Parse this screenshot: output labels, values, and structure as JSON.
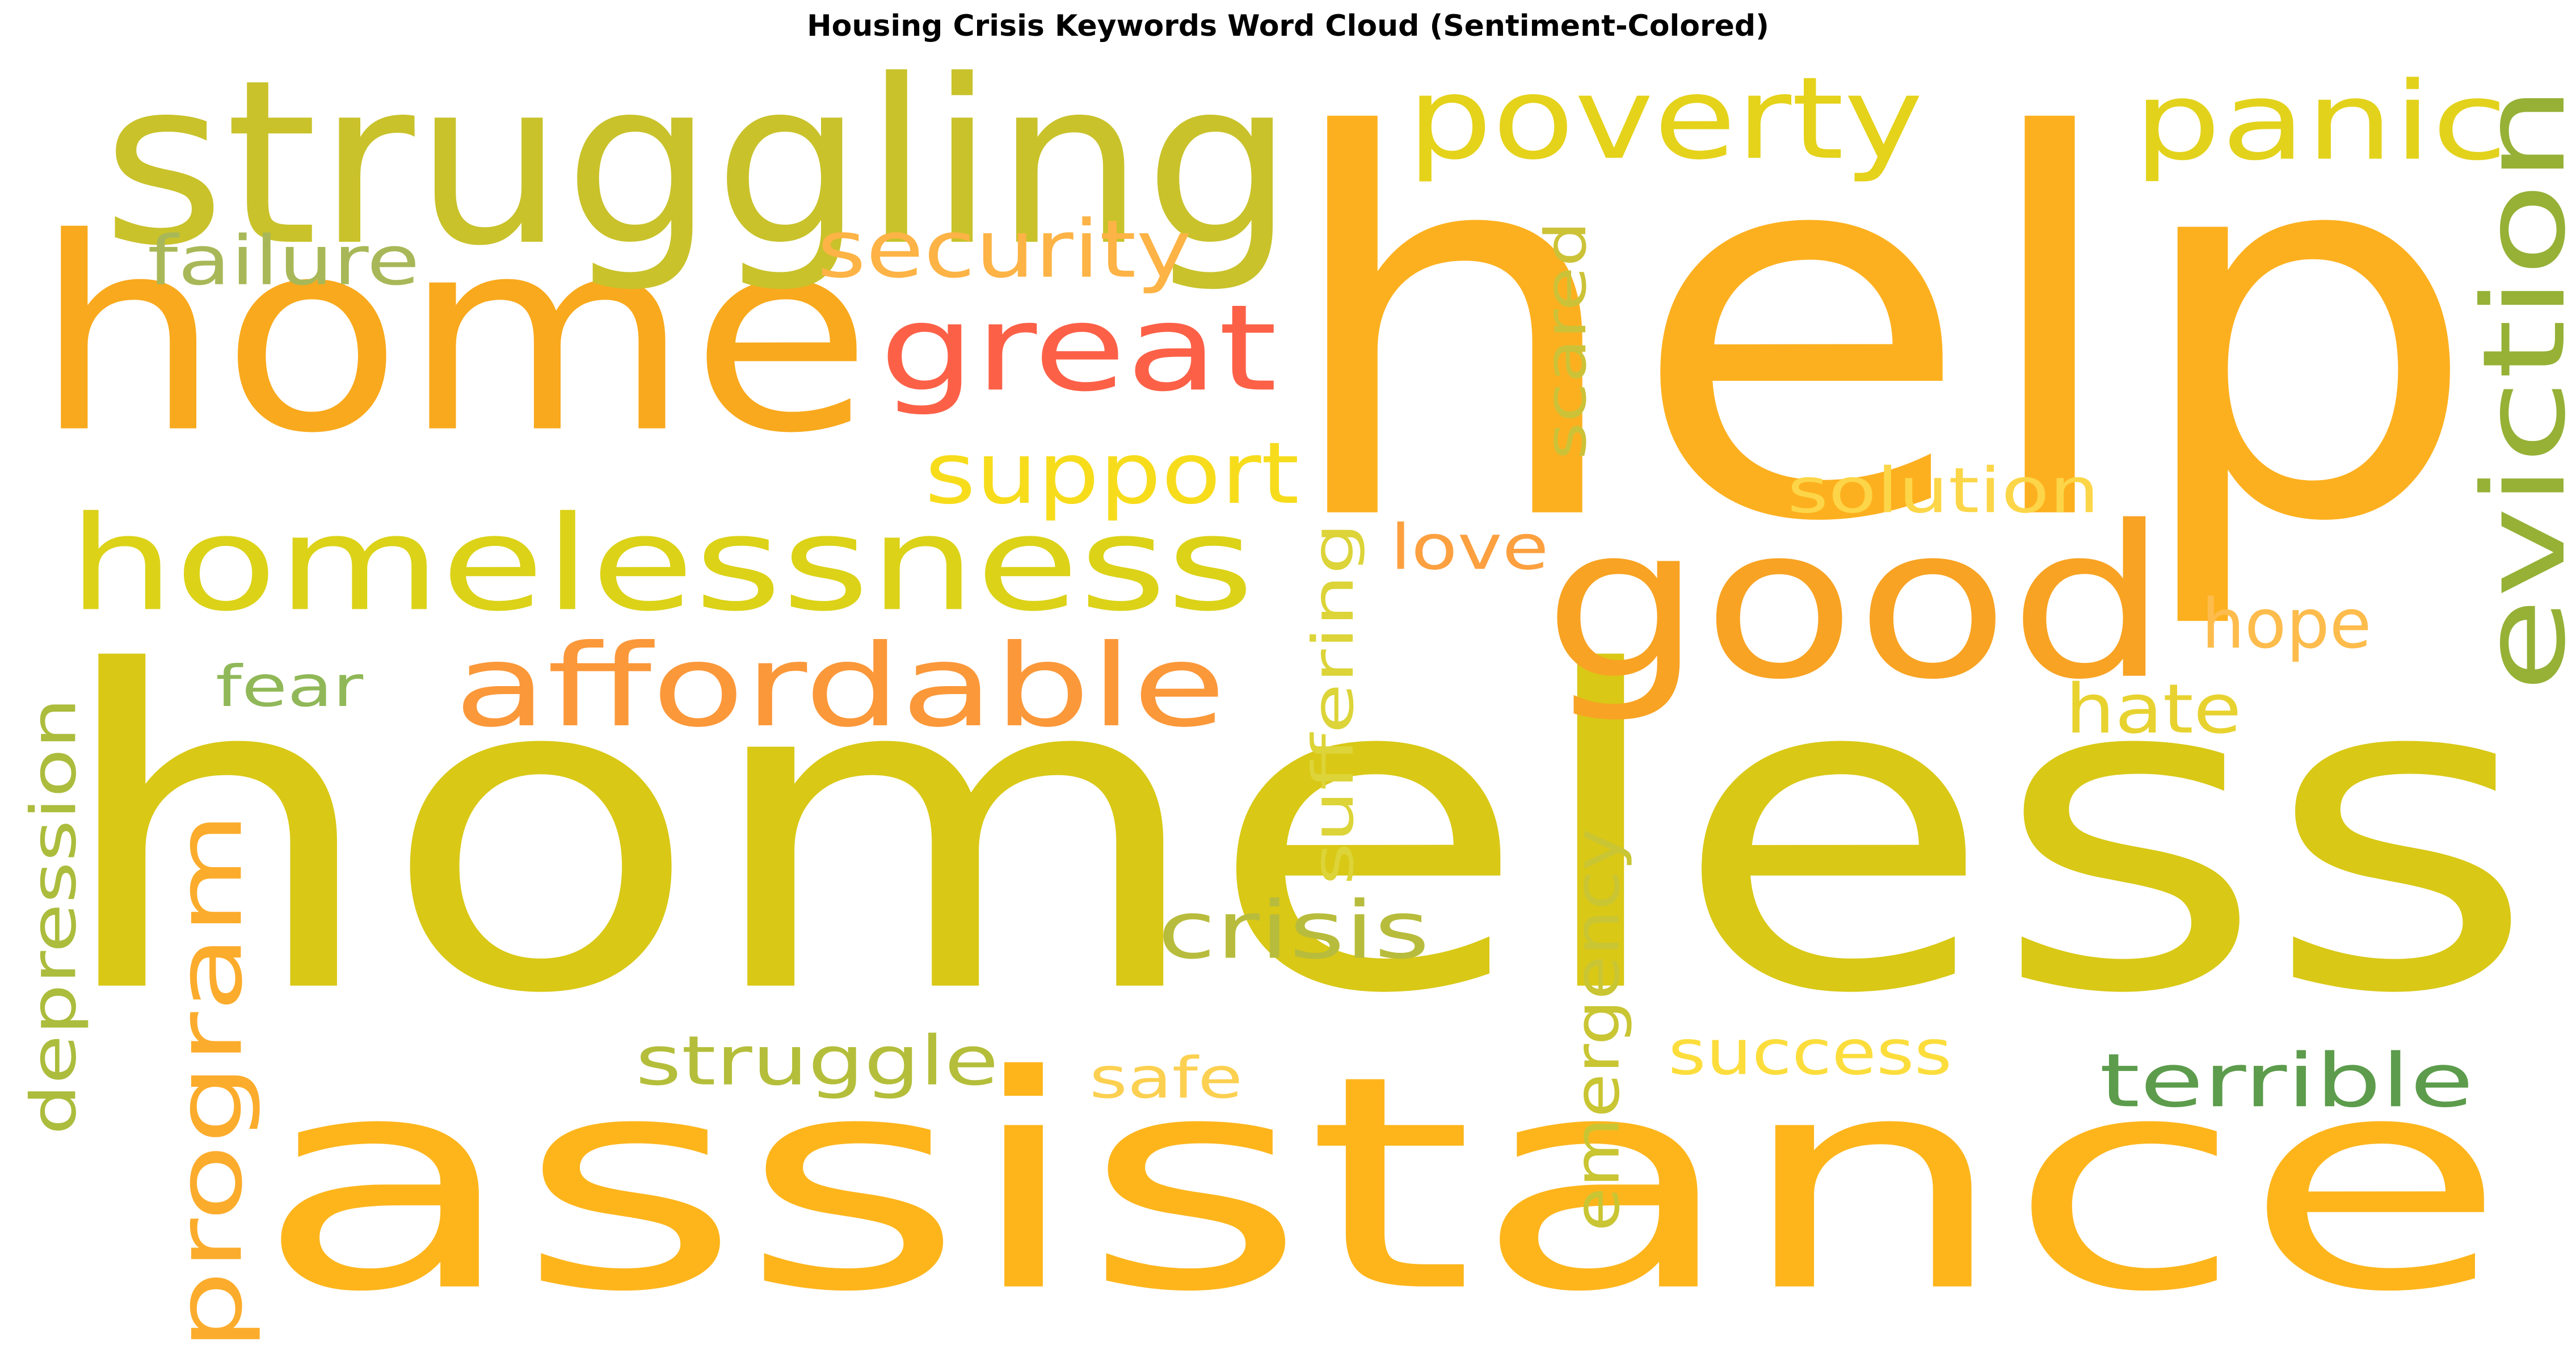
{
  "chart_data": {
    "type": "wordcloud",
    "title": "Housing Crisis Keywords Word Cloud (Sentiment-Colored)",
    "background": "#ffffff",
    "words": [
      {
        "text": "homeless",
        "color": "#d9c816",
        "orientation": "horizontal"
      },
      {
        "text": "help",
        "color": "#fdb01f",
        "orientation": "horizontal"
      },
      {
        "text": "assistance",
        "color": "#feb51c",
        "orientation": "horizontal"
      },
      {
        "text": "home",
        "color": "#f9a91d",
        "orientation": "horizontal"
      },
      {
        "text": "struggling",
        "color": "#c9c22b",
        "orientation": "horizontal"
      },
      {
        "text": "good",
        "color": "#f8a323",
        "orientation": "horizontal"
      },
      {
        "text": "homelessness",
        "color": "#dcd218",
        "orientation": "horizontal"
      },
      {
        "text": "great",
        "color": "#fc6147",
        "orientation": "horizontal"
      },
      {
        "text": "poverty",
        "color": "#e5d21a",
        "orientation": "horizontal"
      },
      {
        "text": "panic",
        "color": "#e3d21c",
        "orientation": "horizontal"
      },
      {
        "text": "eviction",
        "color": "#96b136",
        "orientation": "vertical"
      },
      {
        "text": "affordable",
        "color": "#fb983a",
        "orientation": "horizontal"
      },
      {
        "text": "program",
        "color": "#fcac2c",
        "orientation": "vertical"
      },
      {
        "text": "support",
        "color": "#f7dc1c",
        "orientation": "horizontal"
      },
      {
        "text": "security",
        "color": "#fdb345",
        "orientation": "horizontal"
      },
      {
        "text": "depression",
        "color": "#acbc3c",
        "orientation": "vertical"
      },
      {
        "text": "emergency",
        "color": "#c9c533",
        "orientation": "vertical"
      },
      {
        "text": "crisis",
        "color": "#b8bc3c",
        "orientation": "horizontal"
      },
      {
        "text": "suffering",
        "color": "#dcd438",
        "orientation": "vertical"
      },
      {
        "text": "scared",
        "color": "#ccc238",
        "orientation": "vertical"
      },
      {
        "text": "terrible",
        "color": "#5c9c4c",
        "orientation": "horizontal"
      },
      {
        "text": "struggle",
        "color": "#b4be3a",
        "orientation": "horizontal"
      },
      {
        "text": "failure",
        "color": "#a8b858",
        "orientation": "horizontal"
      },
      {
        "text": "solution",
        "color": "#fcd648",
        "orientation": "horizontal"
      },
      {
        "text": "success",
        "color": "#fcdd3c",
        "orientation": "horizontal"
      },
      {
        "text": "hope",
        "color": "#fdbc4c",
        "orientation": "horizontal"
      },
      {
        "text": "hate",
        "color": "#e8d230",
        "orientation": "horizontal"
      },
      {
        "text": "love",
        "color": "#fca040",
        "orientation": "horizontal"
      },
      {
        "text": "fear",
        "color": "#90b858",
        "orientation": "horizontal"
      },
      {
        "text": "safe",
        "color": "#fcd050",
        "orientation": "horizontal"
      }
    ]
  }
}
